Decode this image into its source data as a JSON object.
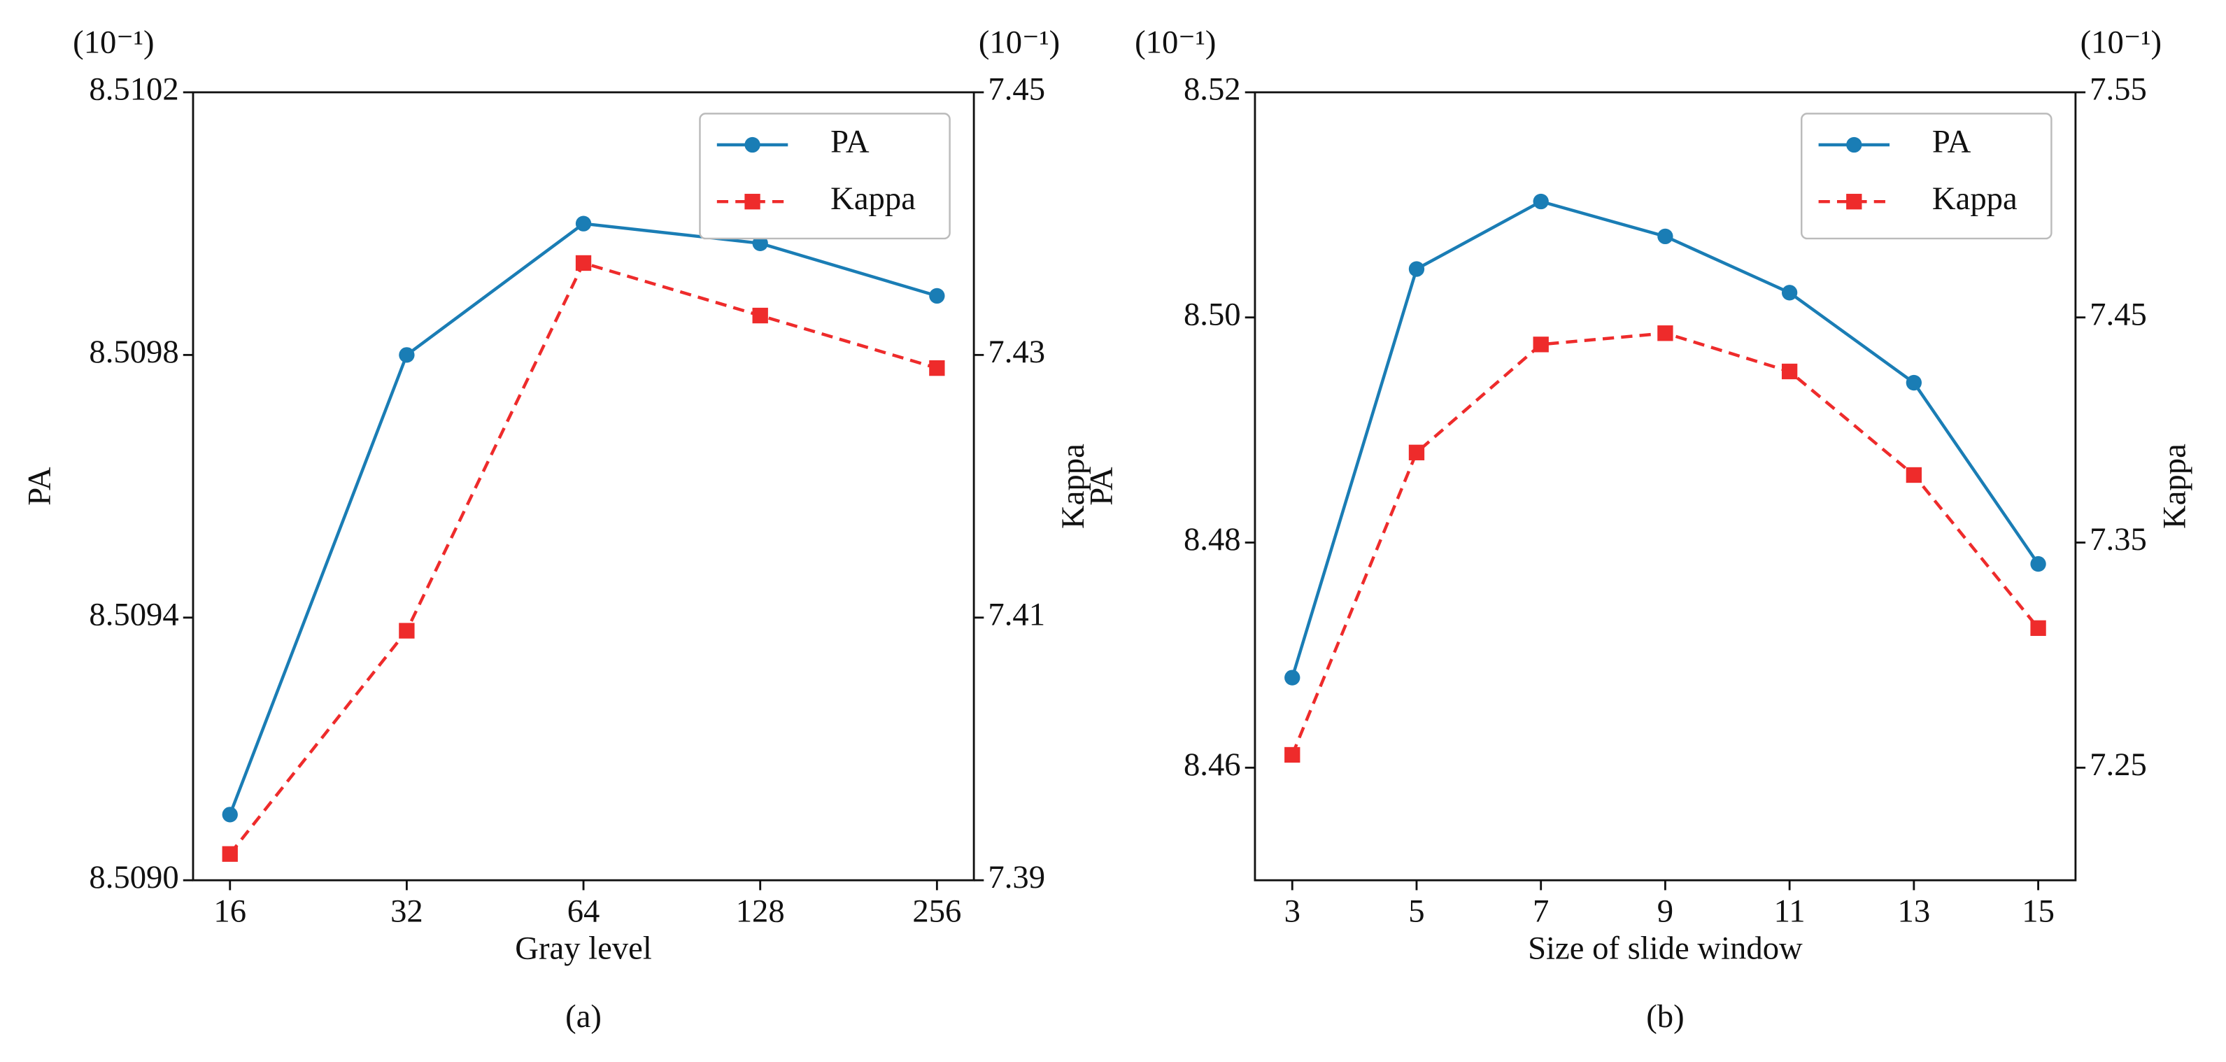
{
  "chart_data": [
    {
      "type": "line",
      "caption": "(a)",
      "xlabel": "Gray level",
      "ylabel": "PA",
      "y2label": "Kappa",
      "y_unit_label": "(10⁻¹)",
      "y2_unit_label": "(10⁻¹)",
      "categories": [
        "16",
        "32",
        "64",
        "128",
        "256"
      ],
      "ylim": [
        8.509,
        8.5102
      ],
      "yticks": [
        {
          "value": 8.509,
          "label": "8.5090"
        },
        8.5094,
        8.5098,
        8.5102
      ],
      "y2lim": [
        7.39,
        7.45
      ],
      "y2ticks": [
        7.39,
        7.41,
        7.43,
        7.45
      ],
      "legend": "upper right",
      "series": [
        {
          "name": "PA",
          "color": "#1a7db5",
          "marker": "circle",
          "linestyle": "solid",
          "values": [
            8.5091,
            8.5098,
            8.51,
            8.50997,
            8.50989
          ]
        },
        {
          "name": "Kappa",
          "color": "#ee2b2b",
          "marker": "square",
          "linestyle": "dashed",
          "axis": "y2",
          "values": [
            7.392,
            7.409,
            7.437,
            7.433,
            7.429
          ]
        }
      ]
    },
    {
      "type": "line",
      "caption": "(b)",
      "xlabel": "Size of slide window",
      "ylabel": "PA",
      "y2label": "Kappa",
      "y_unit_label": "(10⁻¹)",
      "y2_unit_label": "(10⁻¹)",
      "x": [
        3,
        5,
        7,
        9,
        11,
        13,
        15
      ],
      "xlim": [
        2.4,
        15.6
      ],
      "xticks": [
        3,
        5,
        7,
        9,
        11,
        13,
        15
      ],
      "ylim": [
        8.45,
        8.52
      ],
      "yticks": [
        8.46,
        8.48,
        {
          "value": 8.5,
          "label": "8.50"
        },
        8.52
      ],
      "y2lim": [
        7.2,
        7.55
      ],
      "y2ticks": [
        7.25,
        7.35,
        7.45,
        7.55
      ],
      "legend": "upper right",
      "series": [
        {
          "name": "PA",
          "color": "#1a7db5",
          "marker": "circle",
          "linestyle": "solid",
          "values": [
            8.468,
            8.5043,
            8.5103,
            8.5072,
            8.5022,
            8.4942,
            8.4781
          ]
        },
        {
          "name": "Kappa",
          "color": "#ee2b2b",
          "marker": "square",
          "linestyle": "dashed",
          "axis": "y2",
          "values": [
            7.2557,
            7.39,
            7.438,
            7.443,
            7.426,
            7.38,
            7.312
          ]
        }
      ]
    }
  ]
}
